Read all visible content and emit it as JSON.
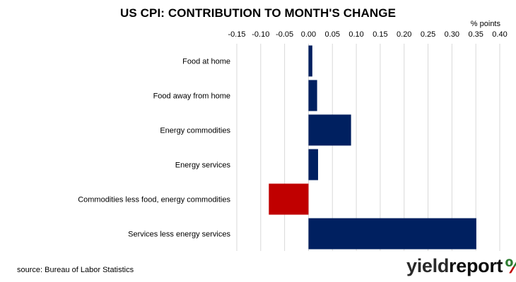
{
  "title": "US CPI: CONTRIBUTION TO MONTH'S CHANGE",
  "source": "source: Bureau of Labor Statistics",
  "logo": {
    "part1": "yield",
    "part2": "report",
    "symbol": "%"
  },
  "colors": {
    "positive": "#002060",
    "negative": "#C00000",
    "grid": "#D9D9D9",
    "logo_symbol_top": "#2e7d32",
    "logo_symbol_bottom": "#c00000"
  },
  "chart_data": {
    "type": "bar",
    "orientation": "horizontal",
    "title": "US CPI: CONTRIBUTION TO MONTH'S CHANGE",
    "unit_label": "% points",
    "xlim": [
      -0.15,
      0.4
    ],
    "ticks": [
      "-0.15",
      "-0.10",
      "-0.05",
      "0.00",
      "0.05",
      "0.10",
      "0.15",
      "0.20",
      "0.25",
      "0.30",
      "0.35",
      "0.40"
    ],
    "tick_values": [
      -0.15,
      -0.1,
      -0.05,
      0.0,
      0.05,
      0.1,
      0.15,
      0.2,
      0.25,
      0.3,
      0.35,
      0.4
    ],
    "axis_position": "top",
    "grid": true,
    "categories": [
      "Food at home",
      "Food away from home",
      "Energy commodities",
      "Energy services",
      "Commodities less food, energy commodities",
      "Services less energy services"
    ],
    "values": [
      0.008,
      0.018,
      0.089,
      0.02,
      -0.083,
      0.351
    ]
  }
}
